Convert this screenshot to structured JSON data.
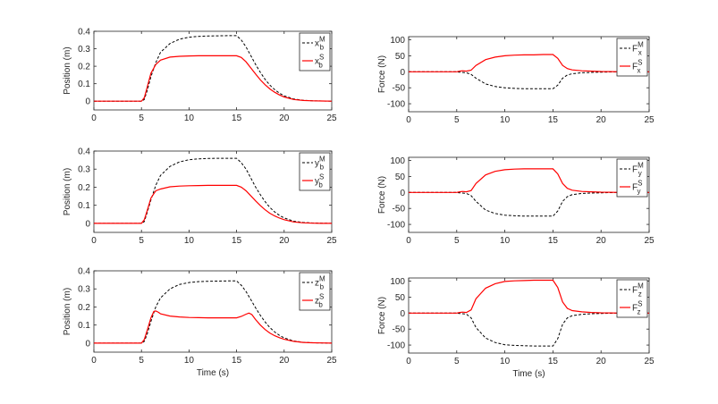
{
  "chart_data": [
    {
      "type": "line",
      "ylabel": "Position (m)",
      "xlabel": "",
      "xlim": [
        0,
        25
      ],
      "ylim": [
        -0.05,
        0.4
      ],
      "xticks": [
        "0",
        "5",
        "10",
        "15",
        "20",
        "25"
      ],
      "yticks": [
        "0",
        "0.1",
        "0.2",
        "0.3",
        "0.4"
      ],
      "grid": false,
      "legend_position": "top-right",
      "series": [
        {
          "name": "x_b^M",
          "style": "dashed",
          "color": "#000000",
          "x": [
            0,
            5,
            5.3,
            5.6,
            6,
            6.5,
            7,
            8,
            9,
            10,
            11,
            12,
            13,
            14,
            15,
            15.5,
            16,
            16.5,
            17,
            17.5,
            18,
            18.5,
            19,
            19.5,
            20,
            21,
            22,
            23,
            24,
            25
          ],
          "y": [
            0,
            0,
            0.01,
            0.06,
            0.14,
            0.22,
            0.28,
            0.33,
            0.355,
            0.366,
            0.371,
            0.373,
            0.374,
            0.375,
            0.375,
            0.35,
            0.31,
            0.26,
            0.21,
            0.165,
            0.125,
            0.092,
            0.066,
            0.046,
            0.031,
            0.013,
            0.005,
            0.002,
            0.001,
            0
          ]
        },
        {
          "name": "x_b^S",
          "style": "solid",
          "color": "#ff0000",
          "x": [
            0,
            5,
            5.3,
            5.6,
            6,
            6.5,
            7,
            8,
            9,
            10,
            11,
            12,
            13,
            14,
            15,
            15.5,
            16,
            16.5,
            17,
            17.5,
            18,
            18.5,
            19,
            19.5,
            20,
            21,
            22,
            23,
            24,
            25
          ],
          "y": [
            0,
            0,
            0.02,
            0.08,
            0.16,
            0.21,
            0.235,
            0.252,
            0.257,
            0.259,
            0.26,
            0.26,
            0.26,
            0.26,
            0.26,
            0.25,
            0.225,
            0.19,
            0.155,
            0.122,
            0.094,
            0.07,
            0.051,
            0.036,
            0.024,
            0.01,
            0.004,
            0.002,
            0.001,
            0
          ]
        }
      ]
    },
    {
      "type": "line",
      "ylabel": "Force (N)",
      "xlabel": "",
      "xlim": [
        0,
        25
      ],
      "ylim": [
        -125,
        110
      ],
      "xticks": [
        "0",
        "5",
        "10",
        "15",
        "20",
        "25"
      ],
      "yticks": [
        "-100",
        "-50",
        "0",
        "50",
        "100"
      ],
      "grid": false,
      "legend_position": "top-right",
      "series": [
        {
          "name": "F_x^M",
          "style": "dashed",
          "color": "#000000",
          "x": [
            0,
            5,
            5.3,
            5.6,
            6,
            6.5,
            7,
            8,
            9,
            10,
            11,
            12,
            13,
            14,
            15,
            15.5,
            16,
            16.5,
            17,
            18,
            19,
            20,
            21,
            22,
            23,
            24,
            25
          ],
          "y": [
            0,
            0,
            -1,
            -2,
            -3,
            -8,
            -20,
            -38,
            -46,
            -50,
            -52,
            -53,
            -53,
            -53,
            -53,
            -42,
            -20,
            -10,
            -6,
            -3,
            -2,
            -1,
            -0.5,
            0,
            0,
            0,
            0
          ]
        },
        {
          "name": "F_x^S",
          "style": "solid",
          "color": "#ff0000",
          "x": [
            0,
            5,
            5.3,
            5.6,
            6,
            6.5,
            7,
            8,
            9,
            10,
            11,
            12,
            13,
            14,
            15,
            15.5,
            16,
            16.5,
            17,
            18,
            19,
            20,
            21,
            22,
            23,
            24,
            25
          ],
          "y": [
            0,
            0,
            2,
            3,
            2,
            5,
            20,
            38,
            46,
            50,
            52,
            53,
            53,
            54,
            54,
            42,
            20,
            10,
            6,
            3,
            2,
            1,
            0.5,
            0,
            0,
            0,
            0
          ]
        }
      ]
    },
    {
      "type": "line",
      "ylabel": "Position (m)",
      "xlabel": "",
      "xlim": [
        0,
        25
      ],
      "ylim": [
        -0.05,
        0.4
      ],
      "xticks": [
        "0",
        "5",
        "10",
        "15",
        "20",
        "25"
      ],
      "yticks": [
        "0",
        "0.1",
        "0.2",
        "0.3",
        "0.4"
      ],
      "grid": false,
      "legend_position": "top-right",
      "series": [
        {
          "name": "y_b^M",
          "style": "dashed",
          "color": "#000000",
          "x": [
            0,
            5,
            5.3,
            5.6,
            6,
            6.5,
            7,
            8,
            9,
            10,
            11,
            12,
            13,
            14,
            15,
            15.5,
            16,
            16.5,
            17,
            17.5,
            18,
            18.5,
            19,
            19.5,
            20,
            21,
            22,
            23,
            24,
            25
          ],
          "y": [
            0,
            0,
            0.01,
            0.06,
            0.13,
            0.21,
            0.265,
            0.315,
            0.34,
            0.352,
            0.357,
            0.359,
            0.36,
            0.36,
            0.36,
            0.335,
            0.3,
            0.25,
            0.2,
            0.158,
            0.12,
            0.088,
            0.063,
            0.044,
            0.03,
            0.012,
            0.005,
            0.002,
            0.001,
            0
          ]
        },
        {
          "name": "y_b^S",
          "style": "solid",
          "color": "#ff0000",
          "x": [
            0,
            5,
            5.3,
            5.6,
            6,
            6.5,
            7,
            8,
            9,
            10,
            11,
            12,
            13,
            14,
            15,
            15.5,
            16,
            16.5,
            17,
            17.5,
            18,
            18.5,
            19,
            19.5,
            20,
            21,
            22,
            23,
            24,
            25
          ],
          "y": [
            0,
            0,
            0.02,
            0.07,
            0.14,
            0.18,
            0.19,
            0.202,
            0.206,
            0.208,
            0.209,
            0.21,
            0.21,
            0.21,
            0.21,
            0.2,
            0.18,
            0.152,
            0.124,
            0.098,
            0.075,
            0.056,
            0.041,
            0.029,
            0.02,
            0.008,
            0.003,
            0.001,
            0,
            0
          ]
        }
      ]
    },
    {
      "type": "line",
      "ylabel": "Force (N)",
      "xlabel": "",
      "xlim": [
        0,
        25
      ],
      "ylim": [
        -125,
        110
      ],
      "xticks": [
        "0",
        "5",
        "10",
        "15",
        "20",
        "25"
      ],
      "yticks": [
        "-100",
        "-50",
        "0",
        "50",
        "100"
      ],
      "grid": false,
      "legend_position": "top-right",
      "series": [
        {
          "name": "F_y^M",
          "style": "dashed",
          "color": "#000000",
          "x": [
            0,
            5,
            5.3,
            5.6,
            6,
            6.5,
            7,
            8,
            9,
            10,
            11,
            12,
            13,
            14,
            15,
            15.5,
            16,
            16.5,
            17,
            18,
            19,
            20,
            21,
            22,
            23,
            24,
            25
          ],
          "y": [
            0,
            0,
            -1,
            -2,
            -3,
            -10,
            -28,
            -55,
            -66,
            -71,
            -73,
            -74,
            -74,
            -74,
            -74,
            -58,
            -28,
            -13,
            -7,
            -3,
            -2,
            -1,
            -0.5,
            0,
            0,
            0,
            0
          ]
        },
        {
          "name": "F_y^S",
          "style": "solid",
          "color": "#ff0000",
          "x": [
            0,
            5,
            5.3,
            5.6,
            6,
            6.5,
            7,
            8,
            9,
            10,
            11,
            12,
            13,
            14,
            15,
            15.5,
            16,
            16.5,
            17,
            18,
            19,
            20,
            21,
            22,
            23,
            24,
            25
          ],
          "y": [
            0,
            0,
            2,
            3,
            2,
            6,
            28,
            55,
            66,
            71,
            73,
            74,
            74,
            74,
            74,
            58,
            28,
            13,
            7,
            3,
            2,
            1,
            0.5,
            0,
            0,
            0,
            0
          ]
        }
      ]
    },
    {
      "type": "line",
      "ylabel": "Position (m)",
      "xlabel": "Time (s)",
      "xlim": [
        0,
        25
      ],
      "ylim": [
        -0.05,
        0.4
      ],
      "xticks": [
        "0",
        "5",
        "10",
        "15",
        "20",
        "25"
      ],
      "yticks": [
        "0",
        "0.1",
        "0.2",
        "0.3",
        "0.4"
      ],
      "grid": false,
      "legend_position": "top-right",
      "series": [
        {
          "name": "z_b^M",
          "style": "dashed",
          "color": "#000000",
          "x": [
            0,
            5,
            5.3,
            5.6,
            6,
            6.5,
            7,
            8,
            9,
            10,
            11,
            12,
            13,
            14,
            15,
            15.5,
            16,
            16.5,
            17,
            17.5,
            18,
            18.5,
            19,
            19.5,
            20,
            21,
            22,
            23,
            24,
            25
          ],
          "y": [
            0,
            0,
            0.01,
            0.05,
            0.12,
            0.2,
            0.25,
            0.3,
            0.325,
            0.335,
            0.34,
            0.342,
            0.343,
            0.344,
            0.344,
            0.32,
            0.285,
            0.24,
            0.195,
            0.153,
            0.117,
            0.086,
            0.062,
            0.043,
            0.029,
            0.012,
            0.005,
            0.002,
            0.001,
            0
          ]
        },
        {
          "name": "z_b^S",
          "style": "solid",
          "color": "#ff0000",
          "x": [
            0,
            5,
            5.3,
            5.6,
            6,
            6.3,
            6.5,
            6.8,
            7,
            8,
            9,
            10,
            11,
            12,
            13,
            14,
            15,
            15.5,
            16,
            16.3,
            16.6,
            17,
            17.5,
            18,
            18.5,
            19,
            19.5,
            20,
            21,
            22,
            23,
            24,
            25
          ],
          "y": [
            0,
            0,
            0.02,
            0.07,
            0.14,
            0.175,
            0.178,
            0.17,
            0.162,
            0.15,
            0.145,
            0.142,
            0.141,
            0.14,
            0.14,
            0.14,
            0.14,
            0.148,
            0.16,
            0.166,
            0.158,
            0.13,
            0.1,
            0.075,
            0.056,
            0.041,
            0.03,
            0.021,
            0.01,
            0.004,
            0.002,
            0.001,
            0
          ]
        }
      ]
    },
    {
      "type": "line",
      "ylabel": "Force (N)",
      "xlabel": "Time (s)",
      "xlim": [
        0,
        25
      ],
      "ylim": [
        -125,
        110
      ],
      "xticks": [
        "0",
        "5",
        "10",
        "15",
        "20",
        "25"
      ],
      "yticks": [
        "-100",
        "-50",
        "0",
        "50",
        "100"
      ],
      "grid": false,
      "legend_position": "top-right",
      "series": [
        {
          "name": "F_z^M",
          "style": "dashed",
          "color": "#000000",
          "x": [
            0,
            5,
            5.3,
            5.6,
            6,
            6.5,
            7,
            8,
            9,
            10,
            11,
            12,
            13,
            14,
            15,
            15.5,
            16,
            16.5,
            17,
            18,
            19,
            20,
            21,
            22,
            23,
            24,
            25
          ],
          "y": [
            0,
            0,
            -1,
            -2,
            -3,
            -15,
            -45,
            -78,
            -92,
            -99,
            -101,
            -102,
            -103,
            -103,
            -103,
            -80,
            -35,
            -15,
            -8,
            -4,
            -2,
            -1,
            -0.5,
            0,
            0,
            0,
            0
          ]
        },
        {
          "name": "F_z^S",
          "style": "solid",
          "color": "#ff0000",
          "x": [
            0,
            5,
            5.3,
            5.6,
            6,
            6.5,
            7,
            8,
            9,
            10,
            11,
            12,
            13,
            14,
            15,
            15.5,
            16,
            16.5,
            17,
            18,
            19,
            20,
            21,
            22,
            23,
            24,
            25
          ],
          "y": [
            0,
            0,
            2,
            3,
            2,
            10,
            45,
            78,
            92,
            99,
            101,
            102,
            103,
            103,
            103,
            80,
            35,
            15,
            8,
            4,
            2,
            1,
            0.5,
            0,
            0,
            0,
            0
          ]
        }
      ]
    }
  ]
}
